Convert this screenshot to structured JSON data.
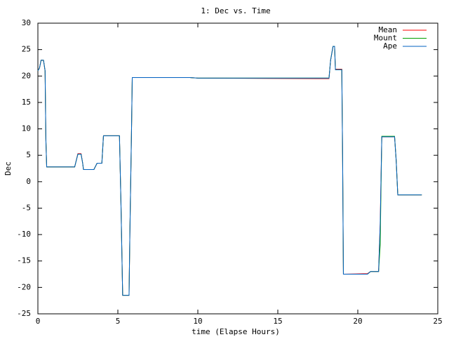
{
  "chart_data": {
    "type": "line",
    "title": "1: Dec vs. Time",
    "x_label": "time (Elapse Hours)",
    "y_label": "Dec",
    "x": [
      0,
      0.1,
      0.2,
      0.35,
      0.45,
      0.5,
      0.55,
      2.3,
      2.5,
      2.7,
      2.8,
      2.85,
      3.5,
      3.7,
      4.0,
      4.1,
      5.1,
      5.2,
      5.3,
      5.7,
      5.75,
      5.85,
      5.9,
      9.5,
      10,
      17.5,
      18.2,
      18.3,
      18.45,
      18.55,
      18.6,
      19.0,
      19.05,
      19.1,
      20.6,
      20.8,
      21.3,
      21.4,
      21.5,
      22.3,
      22.4,
      22.5,
      24
    ],
    "series": [
      {
        "name": "Mean",
        "color": "#ff0000",
        "values": [
          21,
          21.5,
          23,
          23,
          21,
          8,
          2.8,
          2.8,
          5.3,
          5.3,
          3.5,
          2.3,
          2.3,
          3.5,
          3.5,
          8.7,
          8.7,
          -5,
          -21.5,
          -21.5,
          -10,
          9,
          19.7,
          19.7,
          19.6,
          19.5,
          19.5,
          23,
          25.6,
          25.6,
          21.3,
          21.3,
          5,
          -17.5,
          -17.4,
          -17,
          -17,
          -8,
          8.5,
          8.5,
          4,
          -2.5,
          -2.5
        ]
      },
      {
        "name": "Mount",
        "color": "#00a000",
        "values": [
          21,
          21.5,
          23,
          23,
          21,
          8,
          2.8,
          2.8,
          5.2,
          5.2,
          3.5,
          2.3,
          2.3,
          3.5,
          3.5,
          8.7,
          8.7,
          -5,
          -21.5,
          -21.5,
          -10,
          9,
          19.7,
          19.7,
          19.6,
          19.6,
          19.6,
          23,
          25.6,
          25.6,
          21.2,
          21.2,
          5,
          -17.5,
          -17.5,
          -17,
          -17,
          -12,
          8.6,
          8.6,
          4,
          -2.5,
          -2.5
        ]
      },
      {
        "name": "Ape",
        "color": "#0060c0",
        "values": [
          21,
          21.5,
          23,
          23,
          21,
          8,
          2.8,
          2.8,
          5.2,
          5.2,
          3.5,
          2.3,
          2.3,
          3.5,
          3.5,
          8.7,
          8.7,
          -5,
          -21.5,
          -21.5,
          -10,
          9,
          19.7,
          19.7,
          19.6,
          19.6,
          19.6,
          23,
          25.6,
          25.6,
          21.2,
          21.2,
          5,
          -17.5,
          -17.5,
          -17,
          -17,
          -8,
          8.5,
          8.5,
          4,
          -2.5,
          -2.5
        ]
      }
    ],
    "xlim": [
      0,
      25
    ],
    "xticks": [
      0,
      5,
      10,
      15,
      20,
      25
    ],
    "ylim": [
      -25,
      30
    ],
    "yticks": [
      -25,
      -20,
      -15,
      -10,
      -5,
      0,
      5,
      10,
      15,
      20,
      25,
      30
    ],
    "legend": "upper-right"
  }
}
